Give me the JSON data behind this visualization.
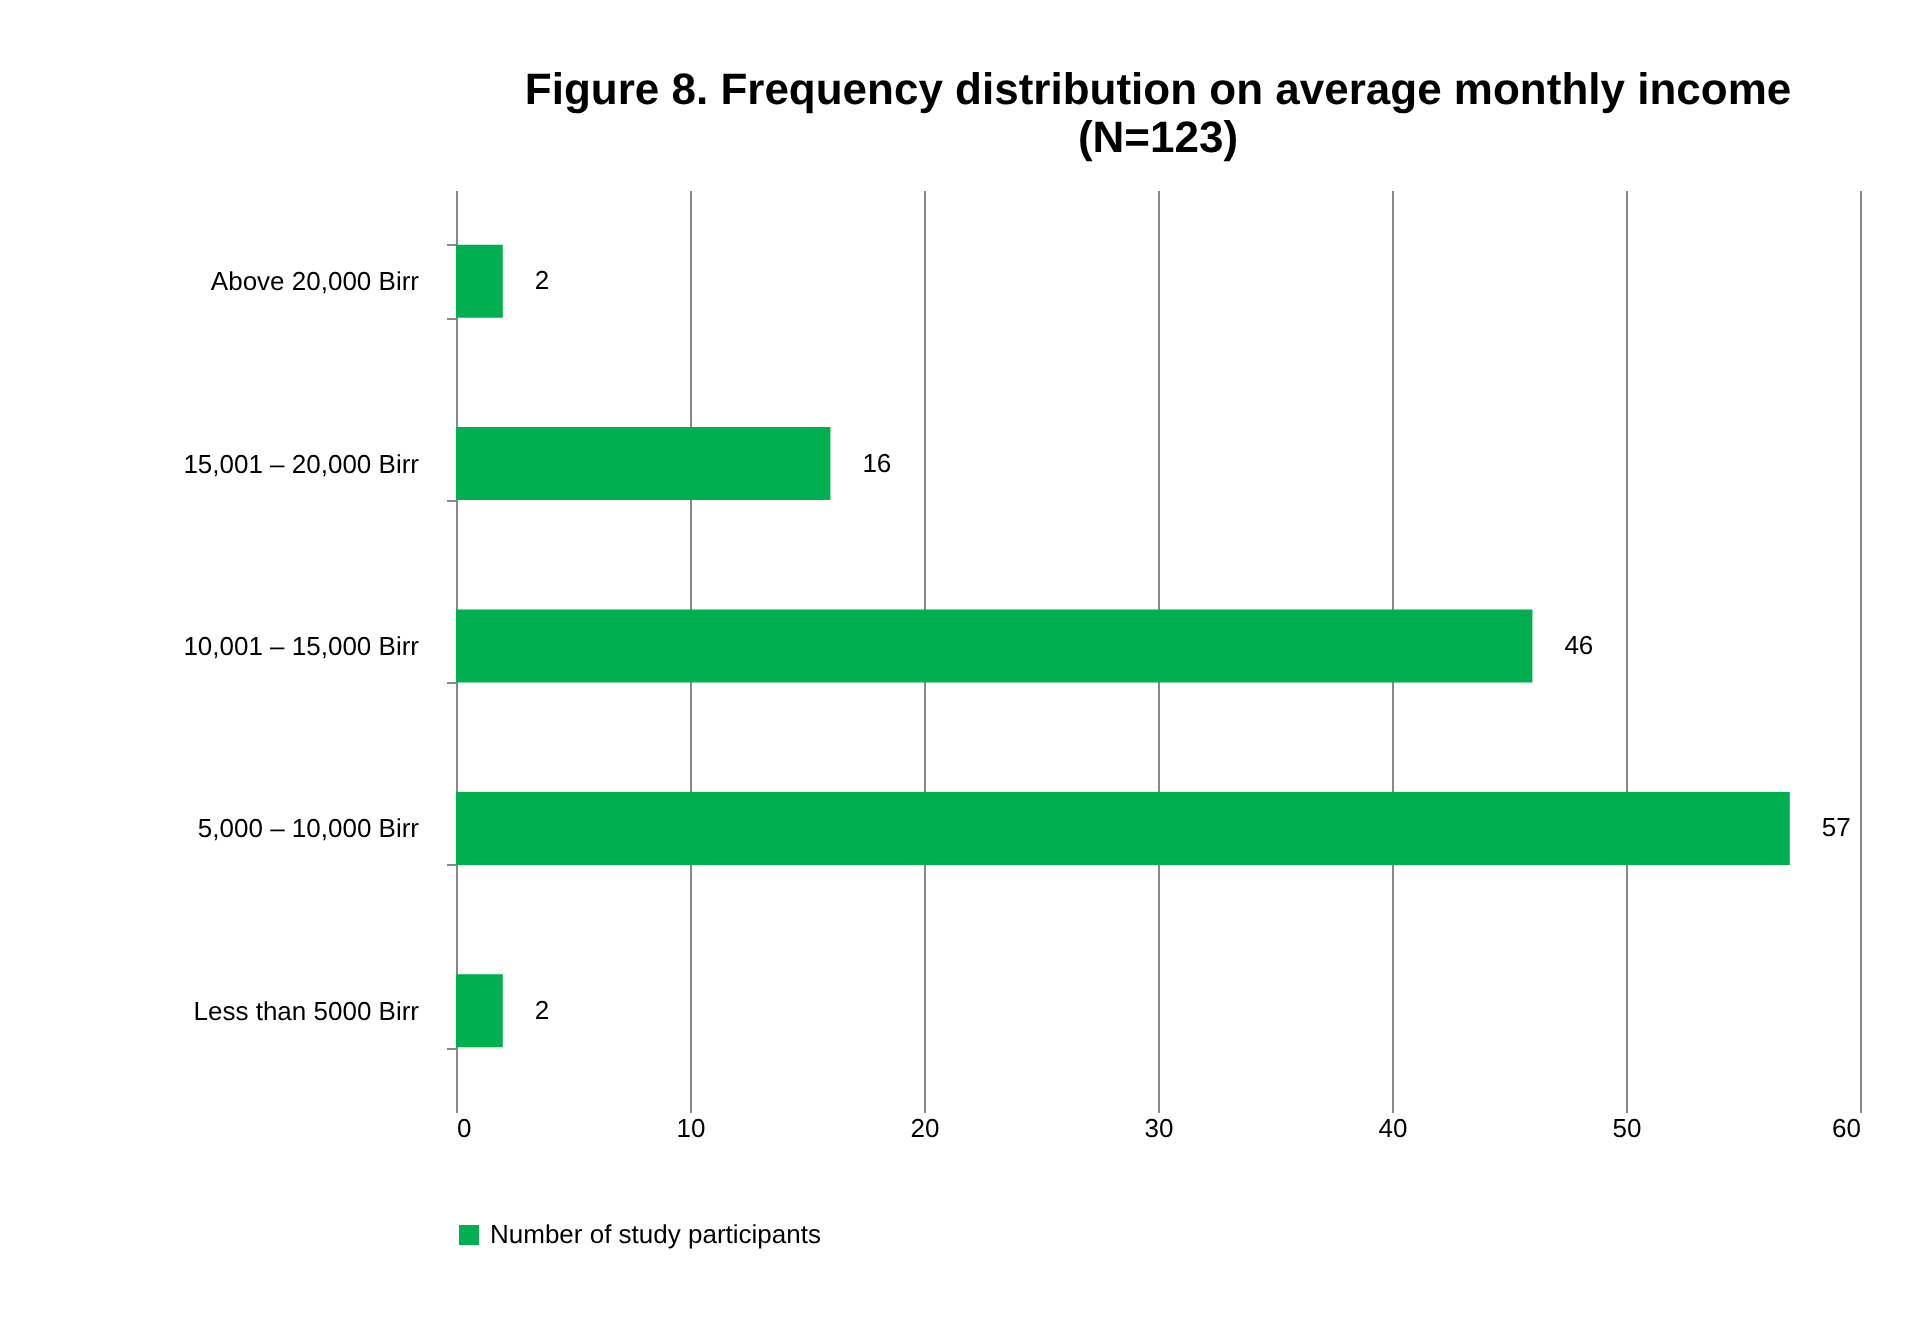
{
  "chart_data": {
    "type": "bar",
    "orientation": "horizontal",
    "title": "Figure 8. Frequency distribution on average monthly income\n(N=123)",
    "categories": [
      "Above 20,000 Birr",
      "15,001 – 20,000 Birr",
      "10,001 – 15,000 Birr",
      "5,000 – 10,000 Birr",
      "Less than 5000 Birr"
    ],
    "series": [
      {
        "name": "Number of study participants",
        "color": "#00b050",
        "values": [
          2,
          16,
          46,
          57,
          2
        ]
      }
    ],
    "xlim": [
      0,
      60
    ],
    "xticks": [
      0,
      10,
      20,
      30,
      40,
      50,
      60
    ],
    "grid": "x",
    "legend": "bottom",
    "data_labels": true
  }
}
